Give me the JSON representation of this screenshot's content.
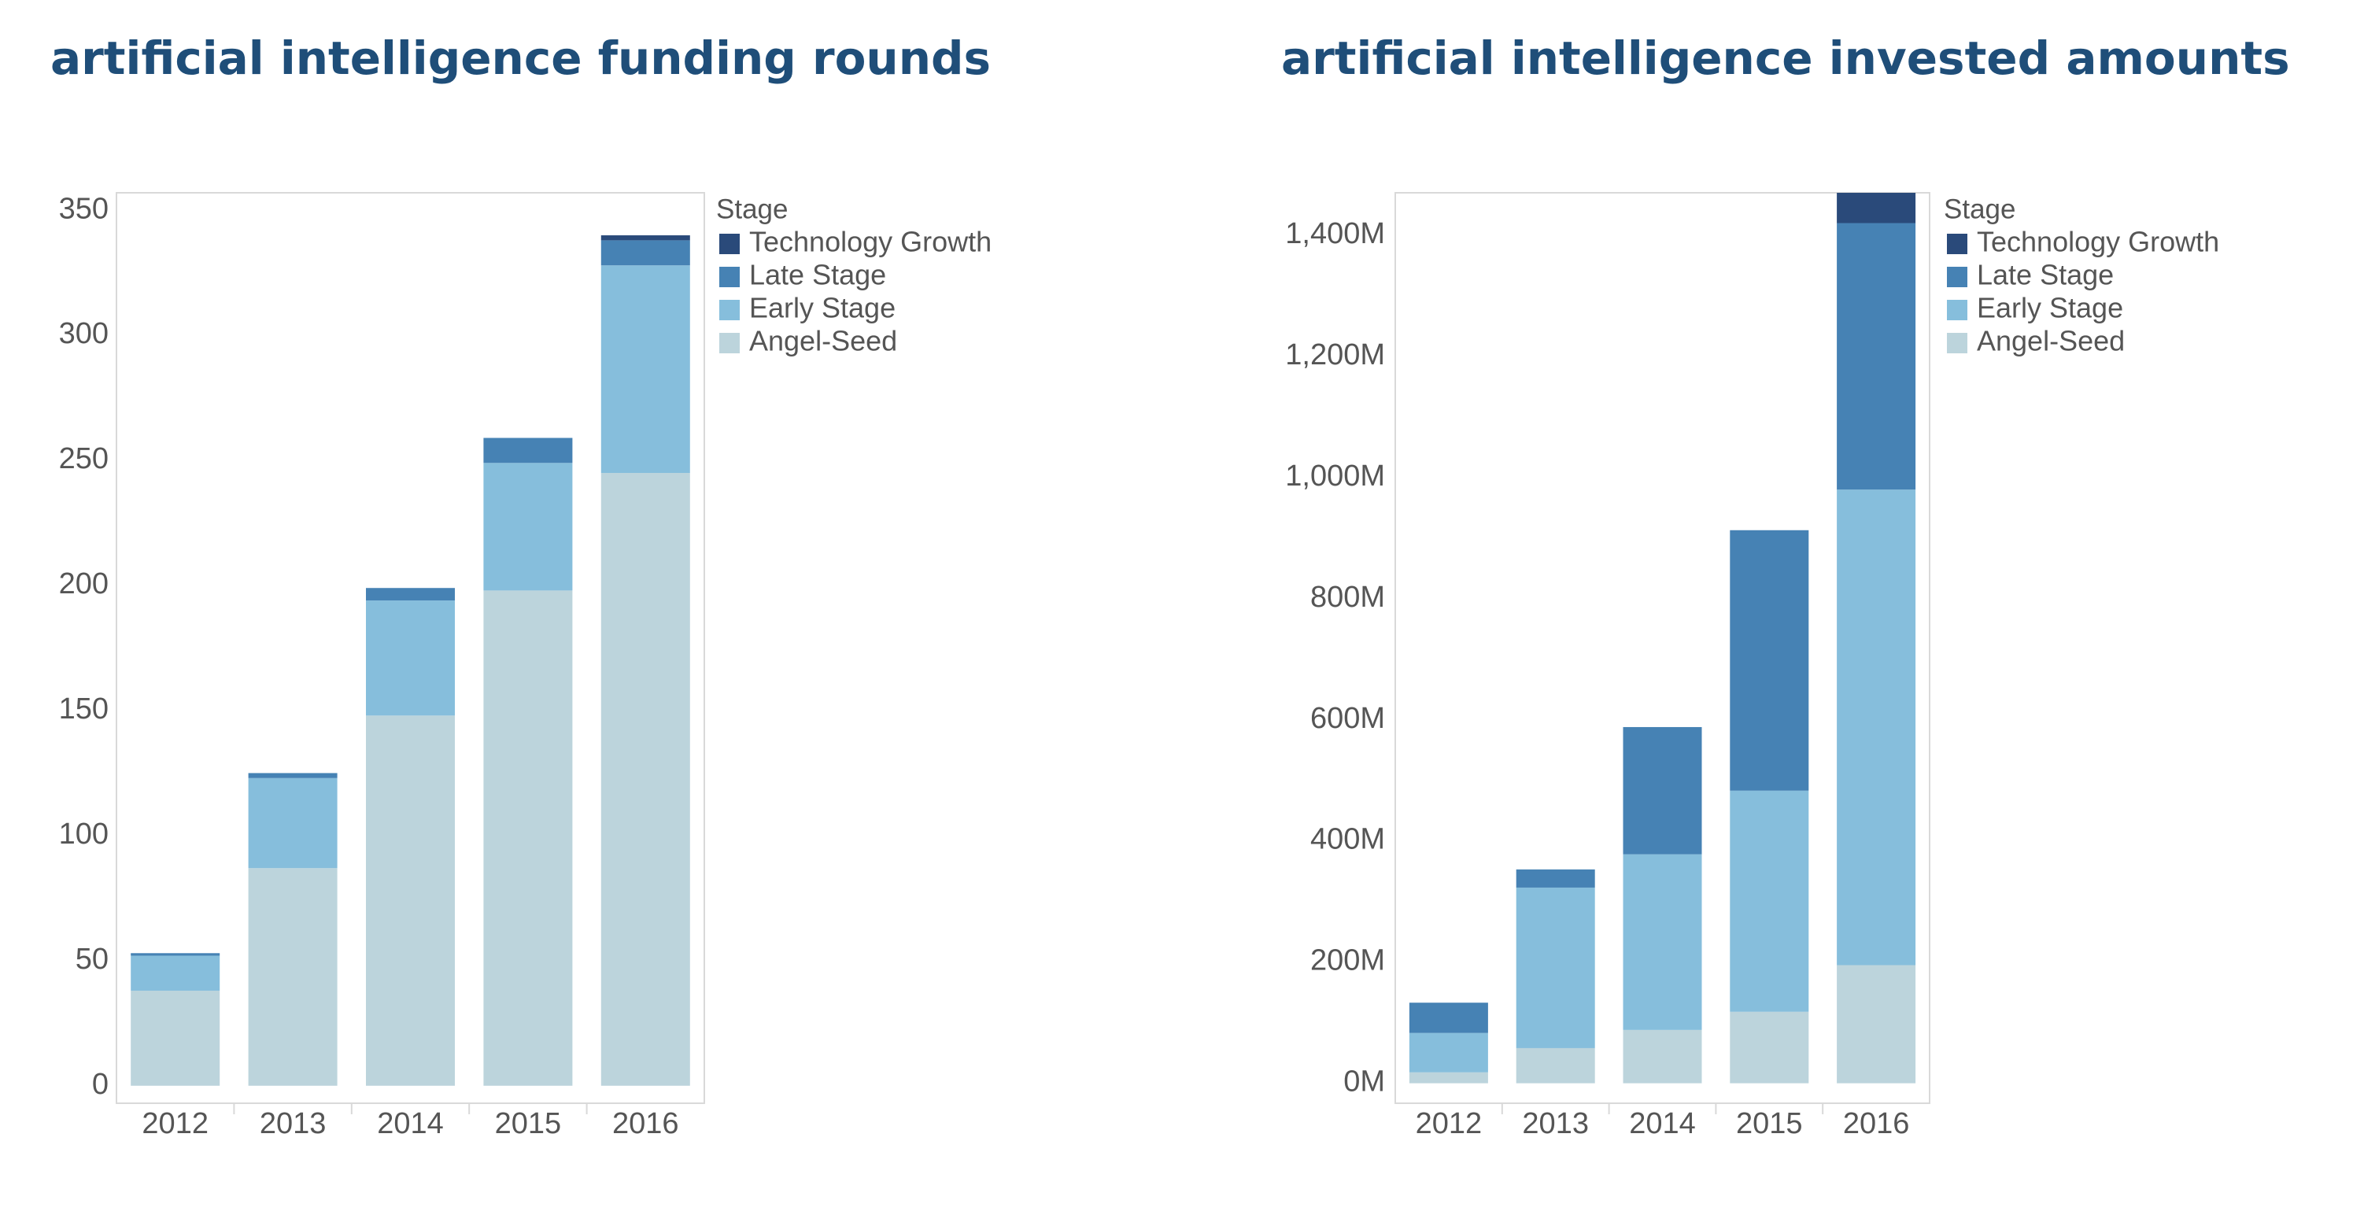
{
  "colors": {
    "title": "#1f4e79",
    "Technology Growth": "#2a4a7a",
    "Late Stage": "#4682b4",
    "Early Stage": "#86bedc",
    "Angel-Seed": "#bcd4dc",
    "axis": "#d9d9d9"
  },
  "chart_data": [
    {
      "type": "bar",
      "stacked": true,
      "title": "artificial intelligence funding rounds",
      "categories": [
        "2012",
        "2013",
        "2014",
        "2015",
        "2016"
      ],
      "series": [
        {
          "name": "Angel-Seed",
          "values": [
            38,
            87,
            148,
            198,
            245
          ]
        },
        {
          "name": "Early Stage",
          "values": [
            14,
            36,
            46,
            51,
            83
          ]
        },
        {
          "name": "Late Stage",
          "values": [
            1,
            2,
            5,
            10,
            10
          ]
        },
        {
          "name": "Technology Growth",
          "values": [
            0,
            0,
            0,
            0,
            2
          ]
        }
      ],
      "yticks": [
        0,
        50,
        100,
        150,
        200,
        250,
        300,
        350
      ],
      "ytick_labels": [
        "0",
        "50",
        "100",
        "150",
        "200",
        "250",
        "300",
        "350"
      ],
      "ylim": [
        -7,
        357
      ],
      "legend": {
        "title": "Stage",
        "entries": [
          "Technology Growth",
          "Late Stage",
          "Early Stage",
          "Angel-Seed"
        ],
        "position": "right"
      },
      "xlabel": "",
      "ylabel": ""
    },
    {
      "type": "bar",
      "stacked": true,
      "title": "artificial intelligence invested amounts",
      "categories": [
        "2012",
        "2013",
        "2014",
        "2015",
        "2016"
      ],
      "series": [
        {
          "name": "Angel-Seed",
          "values": [
            18,
            58,
            88,
            118,
            195
          ]
        },
        {
          "name": "Early Stage",
          "values": [
            65,
            265,
            290,
            365,
            785
          ]
        },
        {
          "name": "Late Stage",
          "values": [
            50,
            30,
            210,
            430,
            440
          ]
        },
        {
          "name": "Technology Growth",
          "values": [
            0,
            0,
            0,
            0,
            50
          ]
        }
      ],
      "yticks": [
        0,
        200,
        400,
        600,
        800,
        1000,
        1200,
        1400
      ],
      "ytick_labels": [
        "0M",
        "200M",
        "400M",
        "600M",
        "800M",
        "1,000M",
        "1,200M",
        "1,400M"
      ],
      "ylim": [
        -33,
        1470
      ],
      "units": "M",
      "legend": {
        "title": "Stage",
        "entries": [
          "Technology Growth",
          "Late Stage",
          "Early Stage",
          "Angel-Seed"
        ],
        "position": "right"
      },
      "xlabel": "",
      "ylabel": ""
    }
  ]
}
